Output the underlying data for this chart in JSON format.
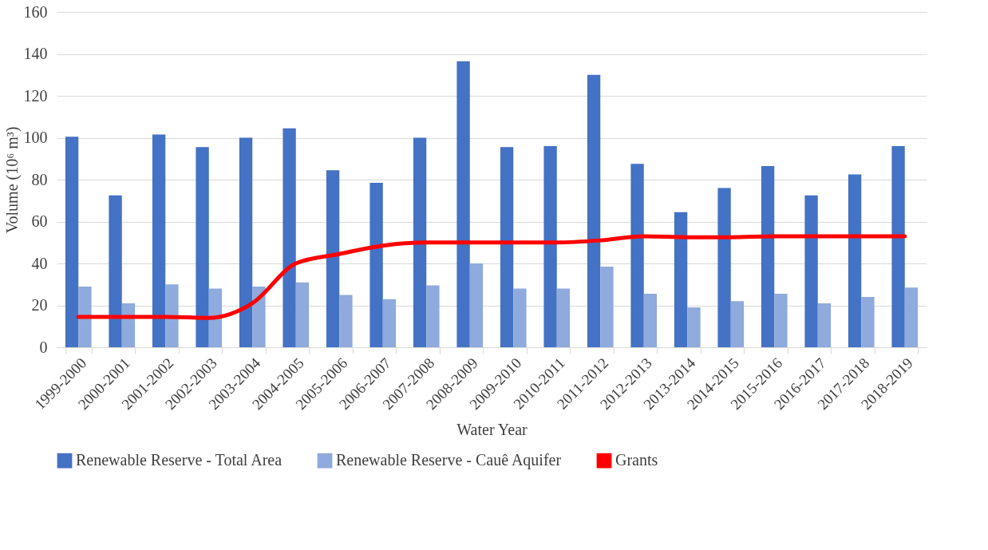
{
  "chart_data": {
    "type": "bar",
    "xlabel": "Water Year",
    "ylabel": "Volume (10⁶ m³)",
    "categories": [
      "1999-2000",
      "2000-2001",
      "2001-2002",
      "2002-2003",
      "2003-2004",
      "2004-2005",
      "2005-2006",
      "2006-2007",
      "2007-2008",
      "2008-2009",
      "2009-2010",
      "2010-2011",
      "2011-2012",
      "2012-2013",
      "2013-2014",
      "2014-2015",
      "2015-2016",
      "2016-2017",
      "2017-2018",
      "2018-2019"
    ],
    "series": [
      {
        "name": "Renewable Reserve - Total Area",
        "color": "#4472c4",
        "values": [
          100.5,
          72.5,
          101.5,
          95.5,
          100,
          104.5,
          84.5,
          78.5,
          100,
          136.5,
          95.5,
          96,
          130,
          87.5,
          64.5,
          76,
          86.5,
          72.5,
          82.5,
          96
        ]
      },
      {
        "name": "Renewable Reserve - Cauê Aquifer",
        "color": "#8faadc",
        "values": [
          29,
          21,
          30,
          28,
          29,
          31,
          25,
          23,
          29.5,
          40,
          28,
          28,
          38.5,
          25.5,
          19,
          22,
          25.5,
          21,
          24,
          28.5
        ]
      },
      {
        "name": "Grants",
        "type": "line",
        "color": "#ff0000",
        "values": [
          14.5,
          14.5,
          14.5,
          14,
          21,
          40,
          44.5,
          48.5,
          50,
          50,
          50,
          50,
          51,
          53,
          52.5,
          52.5,
          53,
          53,
          53,
          53
        ]
      }
    ],
    "ylim": [
      0,
      160
    ],
    "yticks": [
      0,
      20,
      40,
      60,
      80,
      100,
      120,
      140,
      160
    ],
    "grid": "y",
    "legend": "bottom",
    "marker": "none",
    "line_style": "solid"
  }
}
